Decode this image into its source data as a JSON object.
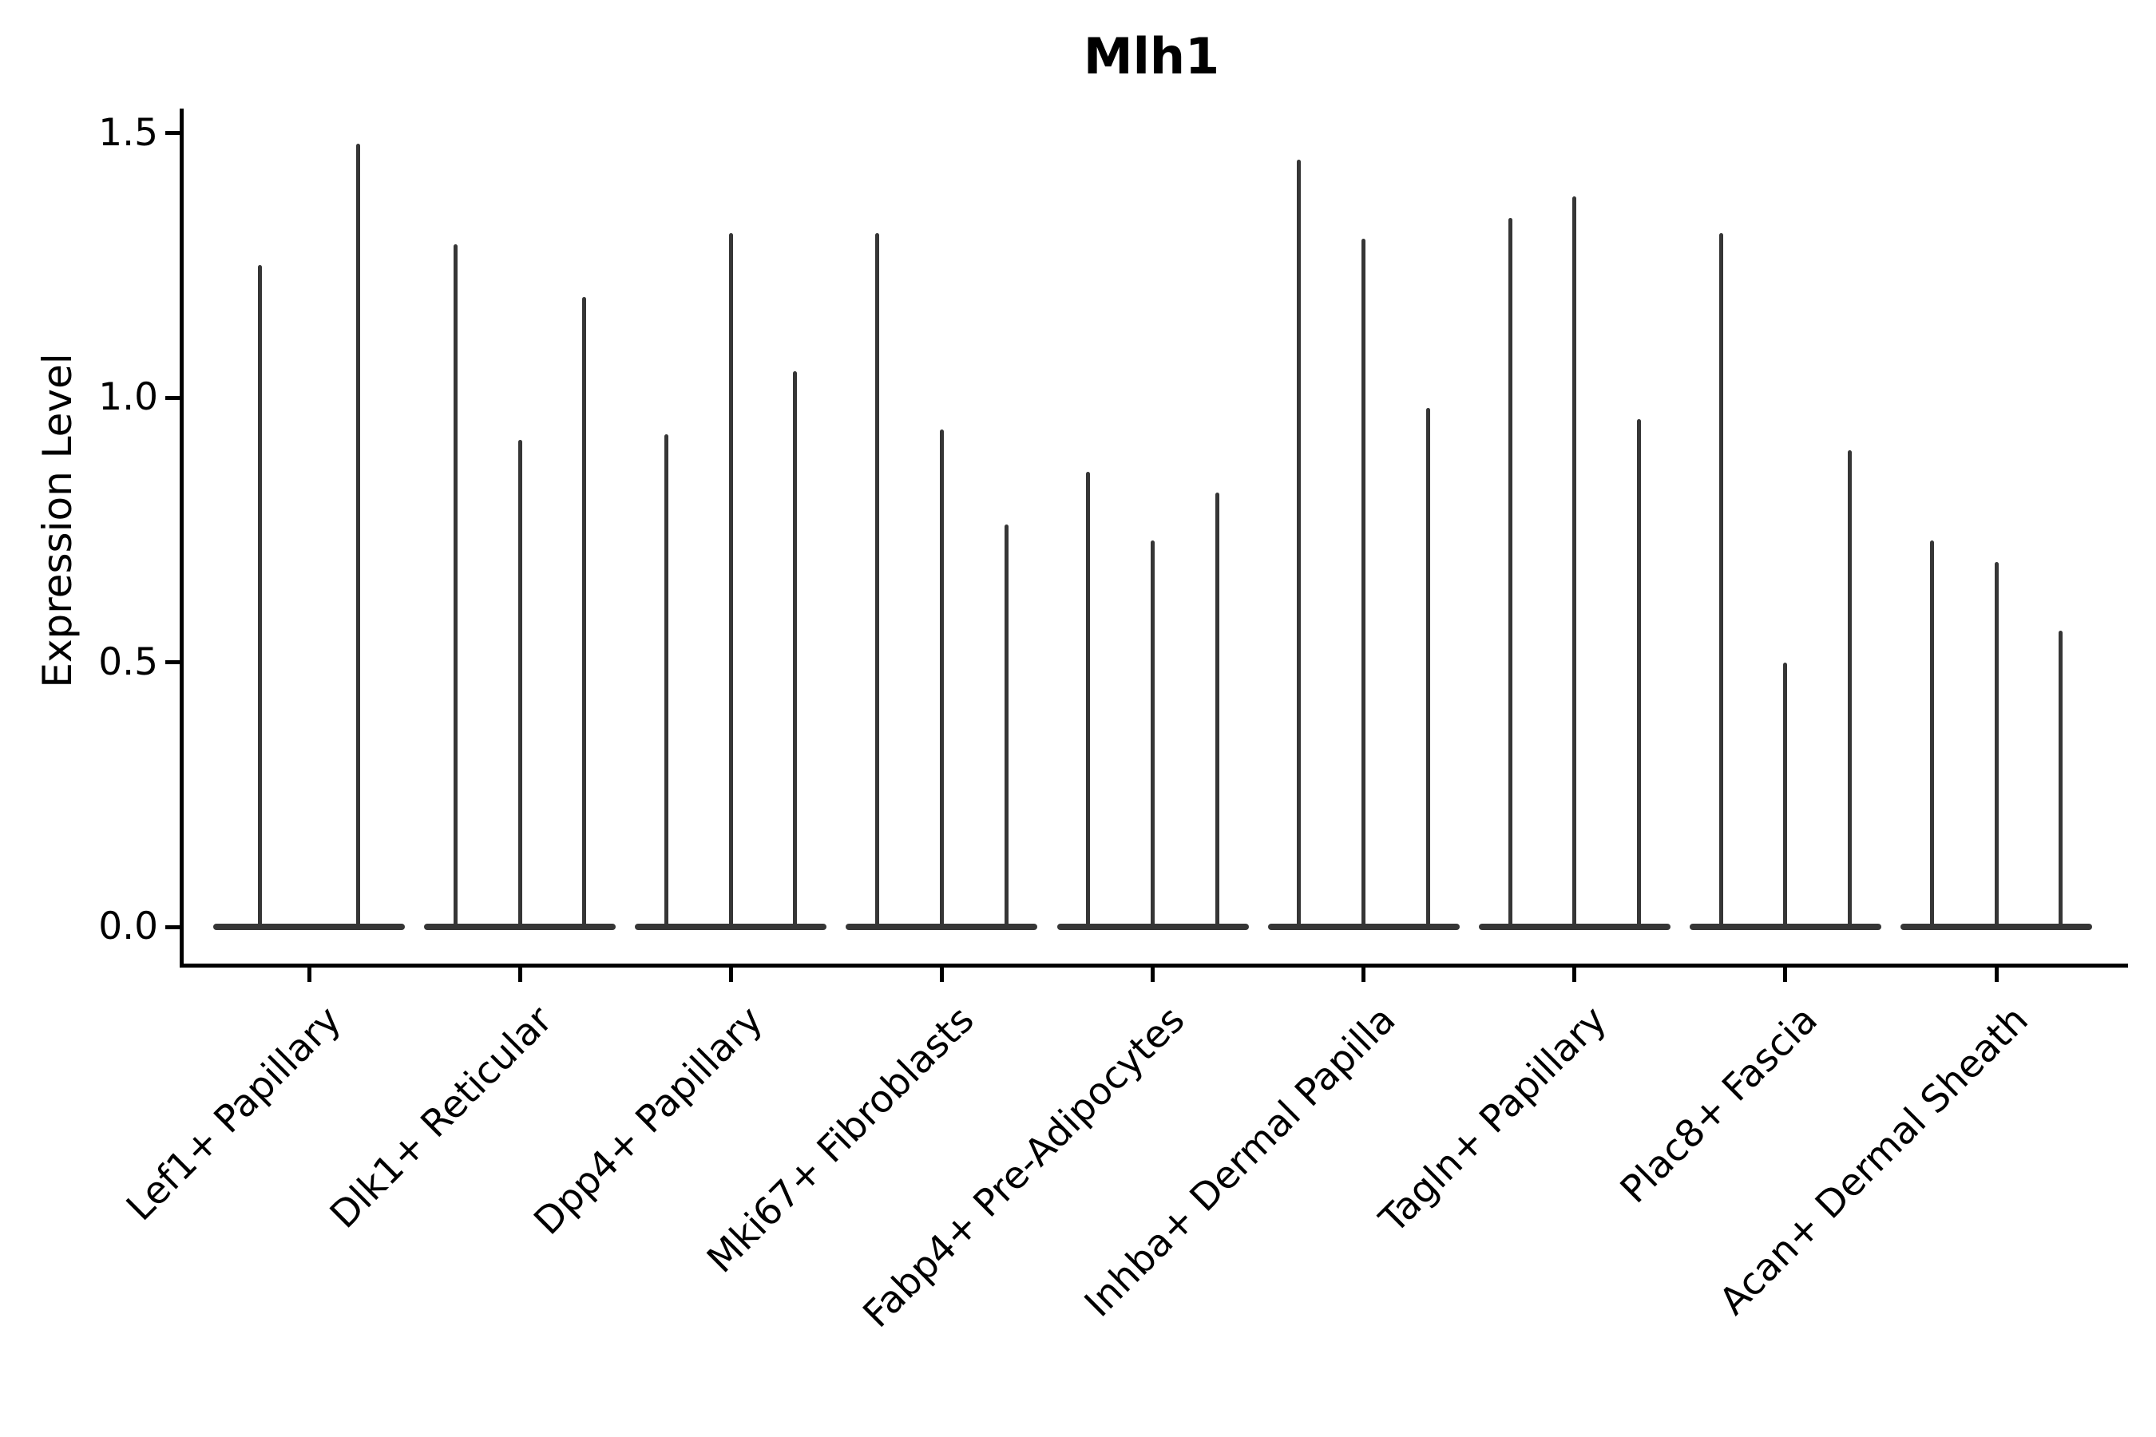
{
  "title": "Mlh1",
  "ylabel": "Expression Level",
  "yticks_labels": [
    "0.0",
    "0.5",
    "1.0",
    "1.5"
  ],
  "colors": {
    "violin": "#363636",
    "axis": "#000000",
    "background": "#ffffff",
    "text": "#000000"
  },
  "chart_data": {
    "type": "violin",
    "title": "Mlh1",
    "xlabel": "",
    "ylabel": "Expression Level",
    "ylim": [
      -0.07,
      1.54
    ],
    "yticks": [
      0.0,
      0.5,
      1.0,
      1.5
    ],
    "grid": false,
    "legend": false,
    "xtick_rotation": 45,
    "description": "Single-cell gene expression violin plot; most cells have expression 0 so each violin collapses to a flat base at 0 with thin spikes marking the upper tail of expressing cells. Several thin violins (2-3) per cell-type category.",
    "categories": [
      "Lef1+ Papillary",
      "Dlk1+ Reticular",
      "Dpp4+ Papillary",
      "Mki67+ Fibroblasts",
      "Fabp4+ Pre-Adipocytes",
      "Inhba+ Dermal Papilla",
      "Tagln+ Papillary",
      "Plac8+ Fascia",
      "Acan+ Dermal Sheath"
    ],
    "series": [
      {
        "category": "Lef1+ Papillary",
        "spike_max_values": [
          1.25,
          1.48
        ]
      },
      {
        "category": "Dlk1+ Reticular",
        "spike_max_values": [
          1.29,
          0.92,
          1.19
        ]
      },
      {
        "category": "Dpp4+ Papillary",
        "spike_max_values": [
          0.93,
          1.31,
          1.05
        ]
      },
      {
        "category": "Mki67+ Fibroblasts",
        "spike_max_values": [
          1.31,
          0.94,
          0.76
        ]
      },
      {
        "category": "Fabp4+ Pre-Adipocytes",
        "spike_max_values": [
          0.86,
          0.73,
          0.82
        ]
      },
      {
        "category": "Inhba+ Dermal Papilla",
        "spike_max_values": [
          1.45,
          1.3,
          0.98
        ]
      },
      {
        "category": "Tagln+ Papillary",
        "spike_max_values": [
          1.34,
          1.38,
          0.96
        ]
      },
      {
        "category": "Plac8+ Fascia",
        "spike_max_values": [
          1.31,
          0.5,
          0.9
        ]
      },
      {
        "category": "Acan+ Dermal Sheath",
        "spike_max_values": [
          0.73,
          0.69,
          0.56
        ]
      }
    ],
    "baseline_value": 0.0
  }
}
